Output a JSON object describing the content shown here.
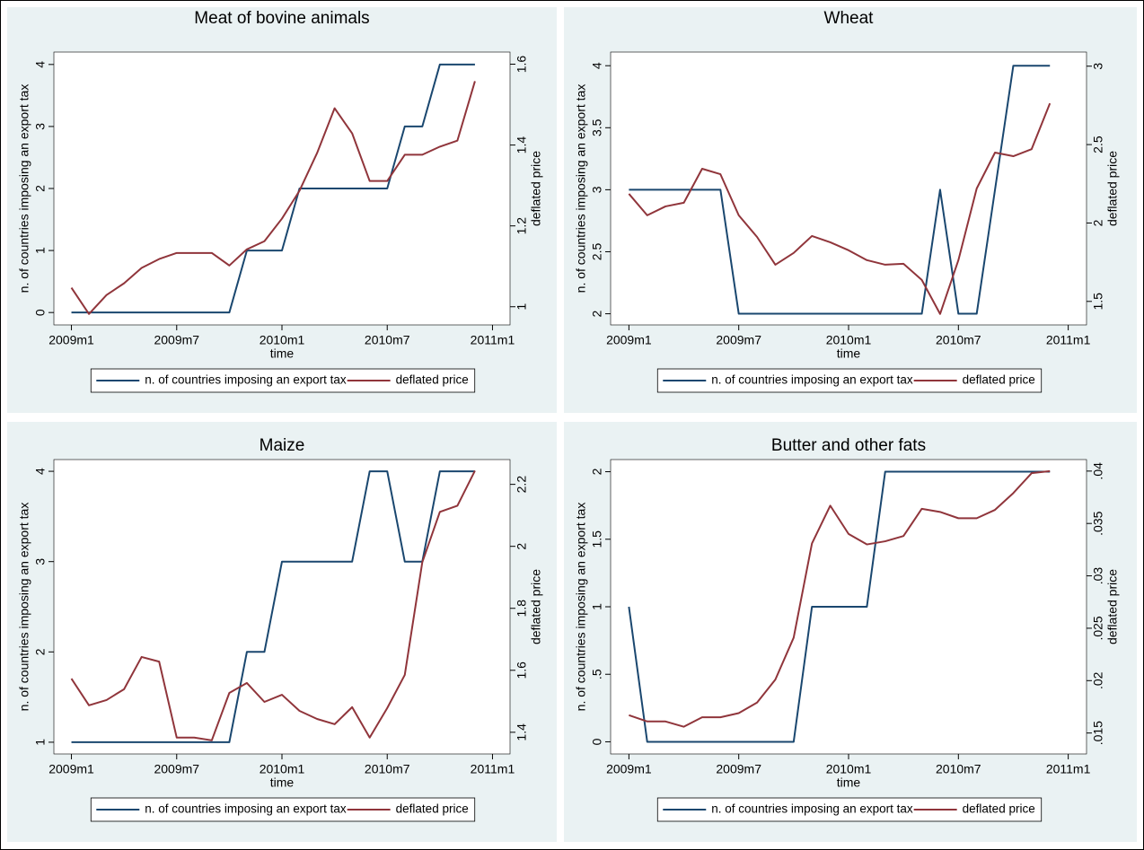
{
  "chart_data": [
    {
      "type": "line",
      "title": "Meat of bovine animals",
      "xlabel": "time",
      "ylabel": "n. of countries imposing an export tax",
      "y2label": "deflated price",
      "x": [
        588,
        589,
        590,
        591,
        592,
        593,
        594,
        595,
        596,
        597,
        598,
        599,
        600,
        601,
        602,
        603,
        604,
        605,
        606,
        607,
        608,
        609,
        610,
        611
      ],
      "xlim": [
        587,
        613
      ],
      "xticks": [
        {
          "value": 588,
          "label": "2009m1"
        },
        {
          "value": 594,
          "label": "2009m7"
        },
        {
          "value": 600,
          "label": "2010m1"
        },
        {
          "value": 606,
          "label": "2010m7"
        },
        {
          "value": 612,
          "label": "2011m1"
        }
      ],
      "ylim": [
        -0.2,
        4.2
      ],
      "yticks": [
        0,
        1,
        2,
        3,
        4
      ],
      "y2lim": [
        0.955,
        1.63
      ],
      "y2ticks": [
        1,
        1.2,
        1.4,
        1.6
      ],
      "legend": "bottom",
      "series": [
        {
          "name": "n. of countries imposing an export tax",
          "color": "#1a476f",
          "values": [
            0,
            0,
            0,
            0,
            0,
            0,
            0,
            0,
            0,
            0,
            1,
            1,
            1,
            2,
            2,
            2,
            2,
            2,
            2,
            3,
            3,
            4,
            4,
            4
          ]
        },
        {
          "name": "deflated price",
          "color": "#90353b",
          "axis": "y2",
          "values": [
            1.047,
            0.982,
            1.029,
            1.058,
            1.096,
            1.118,
            1.133,
            1.133,
            1.133,
            1.102,
            1.142,
            1.162,
            1.218,
            1.287,
            1.38,
            1.491,
            1.429,
            1.311,
            1.311,
            1.376,
            1.376,
            1.396,
            1.411,
            1.558
          ]
        }
      ]
    },
    {
      "type": "line",
      "title": "Wheat",
      "xlabel": "time",
      "ylabel": "n. of countries imposing an export tax",
      "y2label": "deflated price",
      "x": [
        588,
        589,
        590,
        591,
        592,
        593,
        594,
        595,
        596,
        597,
        598,
        599,
        600,
        601,
        602,
        603,
        604,
        605,
        606,
        607,
        608,
        609,
        610,
        611
      ],
      "xlim": [
        587,
        613
      ],
      "xticks": [
        {
          "value": 588,
          "label": "2009m1"
        },
        {
          "value": 594,
          "label": "2009m7"
        },
        {
          "value": 600,
          "label": "2010m1"
        },
        {
          "value": 606,
          "label": "2010m7"
        },
        {
          "value": 612,
          "label": "2011m1"
        }
      ],
      "ylim": [
        1.91,
        4.11
      ],
      "yticks": [
        2,
        2.5,
        3,
        3.5,
        4
      ],
      "y2lim": [
        1.35,
        3.09
      ],
      "y2ticks": [
        1.5,
        2,
        2.5,
        3
      ],
      "legend": "bottom",
      "series": [
        {
          "name": "n. of countries imposing an export tax",
          "color": "#1a476f",
          "values": [
            3,
            3,
            3,
            3,
            3,
            3,
            2,
            2,
            2,
            2,
            2,
            2,
            2,
            2,
            2,
            2,
            2,
            3,
            2,
            2,
            3,
            4,
            4,
            4
          ]
        },
        {
          "name": "deflated price",
          "color": "#90353b",
          "axis": "y2",
          "values": [
            2.186,
            2.049,
            2.106,
            2.129,
            2.346,
            2.311,
            2.049,
            1.911,
            1.734,
            1.809,
            1.917,
            1.877,
            1.826,
            1.763,
            1.734,
            1.74,
            1.637,
            1.42,
            1.763,
            2.22,
            2.449,
            2.426,
            2.471,
            2.763
          ]
        }
      ]
    },
    {
      "type": "line",
      "title": "Maize",
      "xlabel": "time",
      "ylabel": "n. of countries imposing an export tax",
      "y2label": "deflated price",
      "x": [
        588,
        589,
        590,
        591,
        592,
        593,
        594,
        595,
        596,
        597,
        598,
        599,
        600,
        601,
        602,
        603,
        604,
        605,
        606,
        607,
        608,
        609,
        610,
        611
      ],
      "xlim": [
        587,
        613
      ],
      "xticks": [
        {
          "value": 588,
          "label": "2009m1"
        },
        {
          "value": 594,
          "label": "2009m7"
        },
        {
          "value": 600,
          "label": "2010m1"
        },
        {
          "value": 606,
          "label": "2010m7"
        },
        {
          "value": 612,
          "label": "2011m1"
        }
      ],
      "ylim": [
        0.87,
        4.13
      ],
      "yticks": [
        1,
        2,
        3,
        4
      ],
      "y2lim": [
        1.33,
        2.28
      ],
      "y2ticks": [
        1.4,
        1.6,
        1.8,
        2,
        2.2
      ],
      "legend": "bottom",
      "series": [
        {
          "name": "n. of countries imposing an export tax",
          "color": "#1a476f",
          "values": [
            1,
            1,
            1,
            1,
            1,
            1,
            1,
            1,
            1,
            1,
            2,
            2,
            3,
            3,
            3,
            3,
            3,
            4,
            4,
            3,
            3,
            4,
            4,
            4
          ]
        },
        {
          "name": "deflated price",
          "color": "#90353b",
          "axis": "y2",
          "values": [
            1.573,
            1.487,
            1.504,
            1.539,
            1.643,
            1.628,
            1.383,
            1.383,
            1.374,
            1.527,
            1.559,
            1.498,
            1.521,
            1.469,
            1.443,
            1.426,
            1.481,
            1.383,
            1.478,
            1.585,
            1.949,
            2.111,
            2.131,
            2.244
          ]
        }
      ]
    },
    {
      "type": "line",
      "title": "Butter and other fats",
      "xlabel": "time",
      "ylabel": "n. of countries imposing an export tax",
      "y2label": "deflated price",
      "x": [
        588,
        589,
        590,
        591,
        592,
        593,
        594,
        595,
        596,
        597,
        598,
        599,
        600,
        601,
        602,
        603,
        604,
        605,
        606,
        607,
        608,
        609,
        610,
        611
      ],
      "xlim": [
        587,
        613
      ],
      "xticks": [
        {
          "value": 588,
          "label": "2009m1"
        },
        {
          "value": 594,
          "label": "2009m7"
        },
        {
          "value": 600,
          "label": "2010m1"
        },
        {
          "value": 606,
          "label": "2010m7"
        },
        {
          "value": 612,
          "label": "2011m1"
        }
      ],
      "ylim": [
        -0.09,
        2.09
      ],
      "yticks": [
        0,
        {
          "value": 0.5,
          "label": ".5"
        },
        1,
        1.5,
        2
      ],
      "y2lim": [
        0.013,
        0.0411
      ],
      "y2ticks": [
        {
          "value": 0.015,
          "label": ".015"
        },
        {
          "value": 0.02,
          "label": ".02"
        },
        {
          "value": 0.025,
          "label": ".025"
        },
        {
          "value": 0.03,
          "label": ".03"
        },
        {
          "value": 0.035,
          "label": ".035"
        },
        {
          "value": 0.04,
          "label": ".04"
        }
      ],
      "legend": "bottom",
      "series": [
        {
          "name": "n. of countries imposing an export tax",
          "color": "#1a476f",
          "values": [
            1,
            0,
            0,
            0,
            0,
            0,
            0,
            0,
            0,
            0,
            1,
            1,
            1,
            1,
            2,
            2,
            2,
            2,
            2,
            2,
            2,
            2,
            2,
            2
          ]
        },
        {
          "name": "deflated price",
          "color": "#90353b",
          "axis": "y2",
          "values": [
            0.0167,
            0.0161,
            0.0161,
            0.0156,
            0.0165,
            0.0165,
            0.0169,
            0.0179,
            0.0201,
            0.0241,
            0.0331,
            0.0367,
            0.034,
            0.033,
            0.0333,
            0.0338,
            0.0364,
            0.0361,
            0.0355,
            0.0355,
            0.0363,
            0.0379,
            0.0398,
            0.04
          ]
        }
      ]
    }
  ]
}
